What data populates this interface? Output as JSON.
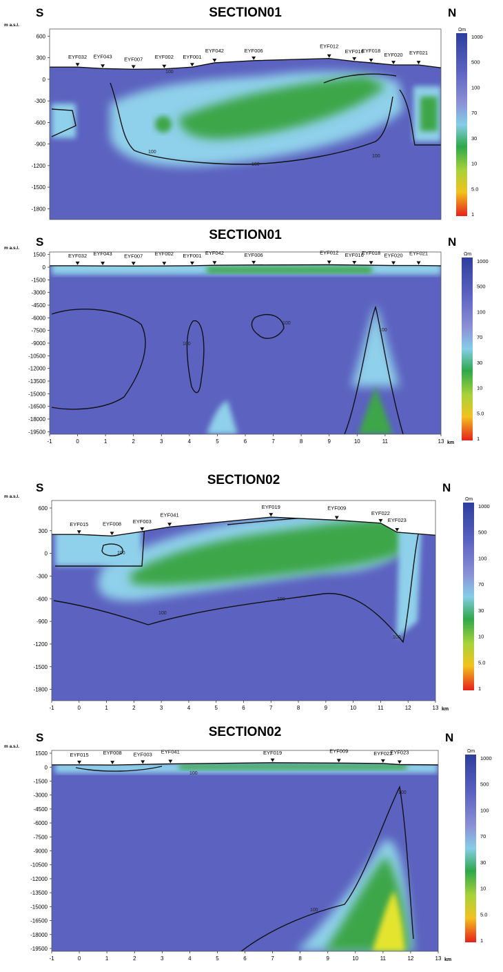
{
  "unit_label": "m a.s.l.",
  "km_label": "km",
  "colorbar": {
    "unit": "Ωm",
    "labels": [
      "1000",
      "500",
      "100",
      "70",
      "30",
      "10",
      "5.0",
      "1"
    ],
    "colors": [
      "#2d3e9c",
      "#4a56b0",
      "#7a82cf",
      "#7fbde4",
      "#2ea84a",
      "#9fcf3a",
      "#f0c020",
      "#e82020"
    ]
  },
  "palette": {
    "background": "#5b62bf",
    "green": "#3ca64a",
    "light_blue": "#8fd0ea",
    "yellow": "#e4e42e",
    "contour": "#111111"
  },
  "chart_data": [
    {
      "type": "heatmap",
      "title": "SECTION01",
      "left_label": "S",
      "right_label": "N",
      "ylabel": "m a.s.l.",
      "xlim": [
        -1,
        13
      ],
      "ylim": [
        -1950,
        700
      ],
      "yticks": [
        600,
        300,
        0,
        -300,
        -600,
        -900,
        -1200,
        -1500,
        -1800
      ],
      "xticks": [],
      "stations": [
        {
          "name": "EYF032",
          "x": 0.0,
          "elev": 170
        },
        {
          "name": "EYF043",
          "x": 0.9,
          "elev": 150
        },
        {
          "name": "EYF007",
          "x": 2.0,
          "elev": 140
        },
        {
          "name": "EYF002",
          "x": 3.1,
          "elev": 145
        },
        {
          "name": "EYF001",
          "x": 4.1,
          "elev": 170
        },
        {
          "name": "EYF042",
          "x": 4.9,
          "elev": 230
        },
        {
          "name": "EYF006",
          "x": 6.3,
          "elev": 260
        },
        {
          "name": "EYF012",
          "x": 9.0,
          "elev": 290
        },
        {
          "name": "EYF016",
          "x": 9.9,
          "elev": 250
        },
        {
          "name": "EYF018",
          "x": 10.5,
          "elev": 230
        },
        {
          "name": "EYF020",
          "x": 11.3,
          "elev": 200
        },
        {
          "name": "EYF021",
          "x": 12.2,
          "elev": 200
        }
      ],
      "contour_label": "100"
    },
    {
      "type": "heatmap",
      "title": "SECTION01",
      "left_label": "S",
      "right_label": "N",
      "ylabel": "m a.s.l.",
      "xlim": [
        -1,
        13
      ],
      "ylim": [
        -19800,
        1800
      ],
      "yticks": [
        1500,
        0,
        -1500,
        -3000,
        -4500,
        -6000,
        -7500,
        -9000,
        -10500,
        -12000,
        -13500,
        -15000,
        -16500,
        -18000,
        -19500
      ],
      "xticks": [
        -1,
        0,
        1,
        2,
        3,
        4,
        5,
        6,
        7,
        8,
        9,
        10,
        11,
        13
      ],
      "stations": [
        {
          "name": "EYF032",
          "x": 0.0,
          "elev": 170
        },
        {
          "name": "EYF043",
          "x": 0.9,
          "elev": 150
        },
        {
          "name": "EYF007",
          "x": 2.0,
          "elev": 140
        },
        {
          "name": "EYF002",
          "x": 3.1,
          "elev": 145
        },
        {
          "name": "EYF001",
          "x": 4.1,
          "elev": 170
        },
        {
          "name": "EYF042",
          "x": 4.9,
          "elev": 230
        },
        {
          "name": "EYF006",
          "x": 6.3,
          "elev": 260
        },
        {
          "name": "EYF012",
          "x": 9.0,
          "elev": 290
        },
        {
          "name": "EYF016",
          "x": 9.9,
          "elev": 250
        },
        {
          "name": "EYF018",
          "x": 10.5,
          "elev": 230
        },
        {
          "name": "EYF020",
          "x": 11.3,
          "elev": 200
        },
        {
          "name": "EYF021",
          "x": 12.2,
          "elev": 200
        }
      ],
      "contour_label": "100"
    },
    {
      "type": "heatmap",
      "title": "SECTION02",
      "left_label": "S",
      "right_label": "N",
      "ylabel": "m a.s.l.",
      "xlim": [
        -1,
        13
      ],
      "ylim": [
        -1950,
        700
      ],
      "yticks": [
        600,
        300,
        0,
        -300,
        -600,
        -900,
        -1200,
        -1500,
        -1800
      ],
      "xticks": [
        -1,
        0,
        1,
        2,
        3,
        4,
        5,
        6,
        7,
        8,
        9,
        10,
        11,
        12,
        13
      ],
      "stations": [
        {
          "name": "EYF015",
          "x": 0.0,
          "elev": 250
        },
        {
          "name": "EYF008",
          "x": 1.2,
          "elev": 230
        },
        {
          "name": "EYF003",
          "x": 2.3,
          "elev": 290
        },
        {
          "name": "EYF041",
          "x": 3.3,
          "elev": 350
        },
        {
          "name": "EYF019",
          "x": 7.0,
          "elev": 480
        },
        {
          "name": "EYF009",
          "x": 9.4,
          "elev": 440
        },
        {
          "name": "EYF022",
          "x": 11.0,
          "elev": 400
        },
        {
          "name": "EYF023",
          "x": 11.6,
          "elev": 280
        }
      ],
      "contour_label": "100"
    },
    {
      "type": "heatmap",
      "title": "SECTION02",
      "left_label": "S",
      "right_label": "N",
      "ylabel": "m a.s.l.",
      "xlim": [
        -1,
        13
      ],
      "ylim": [
        -19800,
        1800
      ],
      "yticks": [
        1500,
        0,
        -1500,
        -3000,
        -4500,
        -6000,
        -7500,
        -9000,
        -10500,
        -12000,
        -13500,
        -15000,
        -16500,
        -18000,
        -19500
      ],
      "xticks": [
        -1,
        0,
        1,
        2,
        3,
        4,
        5,
        6,
        7,
        8,
        9,
        10,
        11,
        12,
        13
      ],
      "stations": [
        {
          "name": "EYF015",
          "x": 0.0,
          "elev": 250
        },
        {
          "name": "EYF008",
          "x": 1.2,
          "elev": 230
        },
        {
          "name": "EYF003",
          "x": 2.3,
          "elev": 290
        },
        {
          "name": "EYF041",
          "x": 3.3,
          "elev": 350
        },
        {
          "name": "EYF019",
          "x": 7.0,
          "elev": 480
        },
        {
          "name": "EYF009",
          "x": 9.4,
          "elev": 440
        },
        {
          "name": "EYF022",
          "x": 11.0,
          "elev": 400
        },
        {
          "name": "EYF023",
          "x": 11.6,
          "elev": 280
        }
      ],
      "contour_label": "100"
    }
  ]
}
